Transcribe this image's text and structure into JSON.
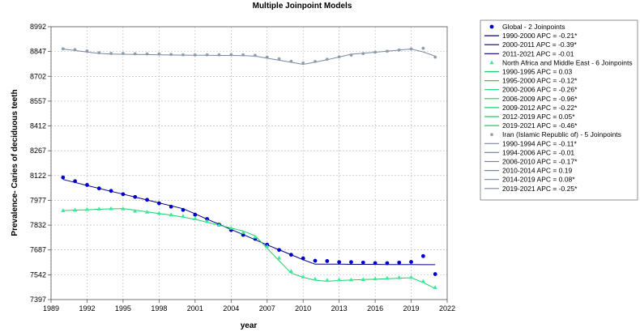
{
  "chart_data": {
    "type": "line",
    "title": "Multiple Joinpoint Models",
    "xlabel": "year",
    "ylabel": "Prevalence- Caries of deciduous teeth",
    "xlim": [
      1989,
      2022
    ],
    "ylim": [
      7397,
      8992
    ],
    "x_ticks": [
      "1989",
      "1992",
      "1995",
      "1998",
      "2001",
      "2004",
      "2007",
      "2010",
      "2013",
      "2016",
      "2019",
      "2022"
    ],
    "y_ticks": [
      "8992",
      "8847",
      "8702",
      "8557",
      "8412",
      "8267",
      "8122",
      "7977",
      "7832",
      "7687",
      "7542",
      "7397"
    ],
    "grid": true,
    "legend_position": "right",
    "colors": {
      "global": "#0000cc",
      "global_fit": "#000080",
      "nam": "#33ee99",
      "nam_fit": "#22cc66",
      "iran": "#8899aa",
      "iran_fit": "#7788a0"
    },
    "series": [
      {
        "name": "Global - 2 Joinpoints",
        "marker": "circle",
        "x": [
          1990,
          1991,
          1992,
          1993,
          1994,
          1995,
          1996,
          1997,
          1998,
          1999,
          2000,
          2001,
          2002,
          2003,
          2004,
          2005,
          2006,
          2007,
          2008,
          2009,
          2010,
          2011,
          2012,
          2013,
          2014,
          2015,
          2016,
          2017,
          2018,
          2019,
          2020,
          2021
        ],
        "observed": [
          8111,
          8089,
          8067,
          8047,
          8032,
          8013,
          7997,
          7980,
          7960,
          7940,
          7921,
          7893,
          7868,
          7835,
          7803,
          7775,
          7752,
          7718,
          7687,
          7659,
          7638,
          7624,
          7622,
          7616,
          7616,
          7613,
          7610,
          7610,
          7613,
          7617,
          7651,
          7546
        ],
        "fitted": [
          8099,
          8082,
          8064,
          8047,
          8030,
          8013,
          7996,
          7979,
          7962,
          7945,
          7928,
          7898,
          7867,
          7837,
          7807,
          7777,
          7747,
          7717,
          7688,
          7659,
          7630,
          7604,
          7604,
          7604,
          7603,
          7603,
          7603,
          7602,
          7602,
          7602,
          7601,
          7601
        ]
      },
      {
        "name": "North Africa and Middle East - 6 Joinpoints",
        "marker": "triangle",
        "x": [
          1990,
          1991,
          1992,
          1993,
          1994,
          1995,
          1996,
          1997,
          1998,
          1999,
          2000,
          2001,
          2002,
          2003,
          2004,
          2005,
          2006,
          2007,
          2008,
          2009,
          2010,
          2011,
          2012,
          2013,
          2014,
          2015,
          2016,
          2017,
          2018,
          2019,
          2020,
          2021
        ],
        "observed": [
          7918,
          7921,
          7924,
          7927,
          7929,
          7928,
          7914,
          7909,
          7902,
          7893,
          7885,
          7870,
          7855,
          7833,
          7815,
          7790,
          7763,
          7708,
          7640,
          7563,
          7530,
          7517,
          7511,
          7513,
          7513,
          7515,
          7519,
          7523,
          7526,
          7527,
          7504,
          7468
        ],
        "fitted": [
          7917,
          7920,
          7922,
          7925,
          7927,
          7929,
          7920,
          7910,
          7900,
          7891,
          7879,
          7866,
          7849,
          7832,
          7815,
          7798,
          7770,
          7697,
          7624,
          7552,
          7527,
          7510,
          7504,
          7508,
          7511,
          7514,
          7516,
          7519,
          7522,
          7525,
          7497,
          7462
        ]
      },
      {
        "name": "Iran (Islamic Republic of) - 5 Joinpoints",
        "marker": "star",
        "x": [
          1990,
          1991,
          1992,
          1993,
          1994,
          1995,
          1996,
          1997,
          1998,
          1999,
          2000,
          2001,
          2002,
          2003,
          2004,
          2005,
          2006,
          2007,
          2008,
          2009,
          2010,
          2011,
          2012,
          2013,
          2014,
          2015,
          2016,
          2017,
          2018,
          2019,
          2020,
          2021
        ],
        "observed": [
          8863,
          8858,
          8850,
          8840,
          8836,
          8836,
          8834,
          8833,
          8833,
          8830,
          8828,
          8827,
          8828,
          8828,
          8829,
          8828,
          8825,
          8814,
          8804,
          8790,
          8780,
          8789,
          8802,
          8816,
          8826,
          8835,
          8843,
          8849,
          8856,
          8862,
          8866,
          8814
        ],
        "fitted": [
          8862,
          8853,
          8844,
          8836,
          8832,
          8831,
          8830,
          8829,
          8828,
          8827,
          8826,
          8825,
          8825,
          8824,
          8824,
          8823,
          8820,
          8808,
          8796,
          8784,
          8772,
          8785,
          8799,
          8815,
          8831,
          8837,
          8843,
          8849,
          8855,
          8862,
          8845,
          8820
        ]
      }
    ],
    "legend": [
      {
        "kind": "marker",
        "marker": "circle",
        "series": 0,
        "label": "Global - 2 Joinpoints"
      },
      {
        "kind": "line",
        "series": 0,
        "label": "1990-2000 APC  =  -0.21*"
      },
      {
        "kind": "line",
        "series": 0,
        "label": "2000-2011 APC  =  -0.39*"
      },
      {
        "kind": "line",
        "series": 0,
        "label": "2011-2021 APC  =  -0.01"
      },
      {
        "kind": "marker",
        "marker": "triangle",
        "series": 1,
        "label": "North Africa and Middle East - 6 Joinpoints"
      },
      {
        "kind": "line",
        "series": 1,
        "label": "1990-1995 APC  =  0.03"
      },
      {
        "kind": "line",
        "series": 1,
        "label": "1995-2000 APC  =  -0.12*"
      },
      {
        "kind": "line",
        "series": 1,
        "label": "2000-2006 APC  =  -0.26*"
      },
      {
        "kind": "line",
        "series": 1,
        "label": "2006-2009 APC  =  -0.96*"
      },
      {
        "kind": "line",
        "series": 1,
        "label": "2009-2012 APC  =  -0.22*"
      },
      {
        "kind": "line",
        "series": 1,
        "label": "2012-2019 APC  =  0.05*"
      },
      {
        "kind": "line",
        "series": 1,
        "label": "2019-2021 APC  =  -0.46*"
      },
      {
        "kind": "marker",
        "marker": "star",
        "series": 2,
        "label": "Iran (Islamic Republic of) - 5 Joinpoints"
      },
      {
        "kind": "line",
        "series": 2,
        "label": "1990-1994 APC  =  -0.11*"
      },
      {
        "kind": "line",
        "series": 2,
        "label": "1994-2006 APC  =  -0.01"
      },
      {
        "kind": "line",
        "series": 2,
        "label": "2006-2010 APC  =  -0.17*"
      },
      {
        "kind": "line",
        "series": 2,
        "label": "2010-2014 APC  =  0.19"
      },
      {
        "kind": "line",
        "series": 2,
        "label": "2014-2019 APC  =  0.08*"
      },
      {
        "kind": "line",
        "series": 2,
        "label": "2019-2021 APC  =  -0.25*"
      }
    ]
  }
}
